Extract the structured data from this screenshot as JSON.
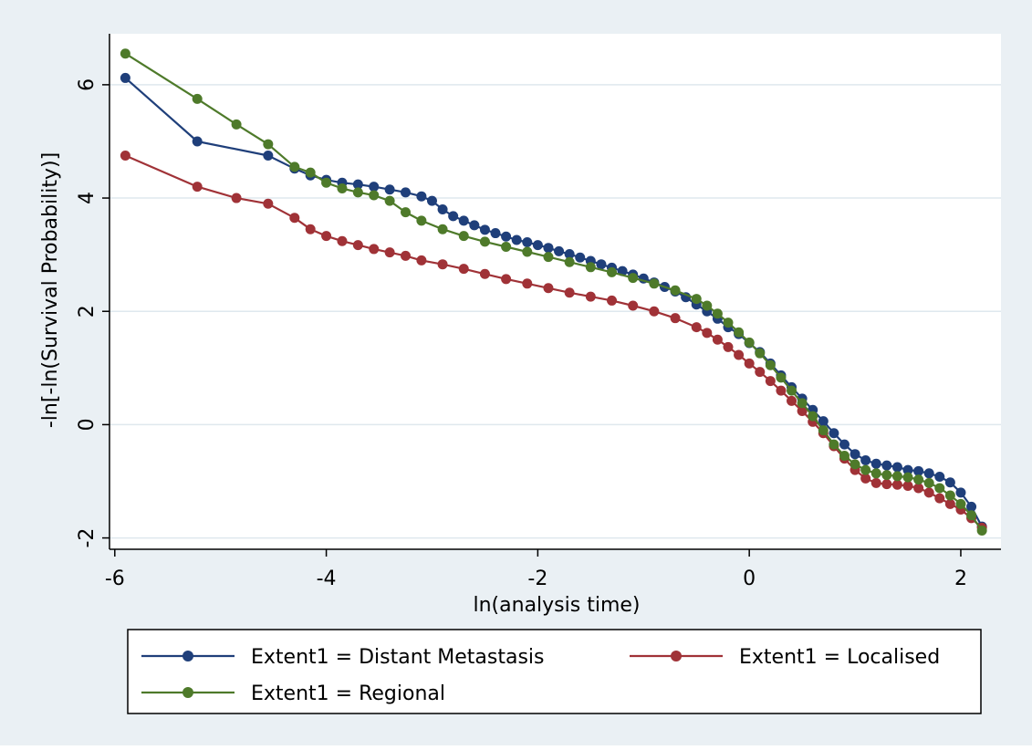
{
  "chart_data": {
    "type": "line",
    "title": "",
    "xlabel": "ln(analysis time)",
    "ylabel": "-ln[-ln(Survival Probability)]",
    "xlim": [
      -6.05,
      2.38
    ],
    "ylim": [
      -2.2,
      6.9
    ],
    "x_ticks": [
      -6,
      -4,
      -2,
      0,
      2
    ],
    "y_ticks": [
      -2,
      0,
      2,
      4,
      6
    ],
    "x_tick_labels": [
      "-6",
      "-4",
      "-2",
      "0",
      "2"
    ],
    "y_tick_labels": [
      "-2",
      "0",
      "2",
      "4",
      "6"
    ],
    "grid": "horizontal",
    "legend_position": "bottom",
    "series": [
      {
        "name": "Extent1 = Distant Metastasis",
        "color": "#1f3f7a",
        "x": [
          -5.9,
          -5.22,
          -4.55,
          -4.3,
          -4.15,
          -4.0,
          -3.85,
          -3.7,
          -3.55,
          -3.4,
          -3.25,
          -3.1,
          -3.0,
          -2.9,
          -2.8,
          -2.7,
          -2.6,
          -2.5,
          -2.4,
          -2.3,
          -2.2,
          -2.1,
          -2.0,
          -1.9,
          -1.8,
          -1.7,
          -1.6,
          -1.5,
          -1.4,
          -1.3,
          -1.2,
          -1.1,
          -1.0,
          -0.9,
          -0.8,
          -0.7,
          -0.6,
          -0.5,
          -0.4,
          -0.3,
          -0.2,
          -0.1,
          0.0,
          0.1,
          0.2,
          0.3,
          0.4,
          0.5,
          0.6,
          0.7,
          0.8,
          0.9,
          1.0,
          1.1,
          1.2,
          1.3,
          1.4,
          1.5,
          1.6,
          1.7,
          1.8,
          1.9,
          2.0,
          2.1,
          2.2
        ],
        "y": [
          6.12,
          5.0,
          4.75,
          4.52,
          4.4,
          4.32,
          4.27,
          4.24,
          4.2,
          4.15,
          4.1,
          4.03,
          3.95,
          3.8,
          3.68,
          3.6,
          3.52,
          3.44,
          3.38,
          3.32,
          3.26,
          3.22,
          3.17,
          3.12,
          3.06,
          3.01,
          2.95,
          2.89,
          2.83,
          2.77,
          2.71,
          2.65,
          2.58,
          2.51,
          2.43,
          2.35,
          2.25,
          2.12,
          2.0,
          1.87,
          1.72,
          1.6,
          1.44,
          1.28,
          1.08,
          0.87,
          0.66,
          0.46,
          0.26,
          0.06,
          -0.15,
          -0.35,
          -0.52,
          -0.63,
          -0.69,
          -0.72,
          -0.75,
          -0.8,
          -0.82,
          -0.86,
          -0.92,
          -1.02,
          -1.2,
          -1.45,
          -1.8
        ]
      },
      {
        "name": "Extent1 = Localised",
        "color": "#a03237",
        "x": [
          -5.9,
          -5.22,
          -4.85,
          -4.55,
          -4.3,
          -4.15,
          -4.0,
          -3.85,
          -3.7,
          -3.55,
          -3.4,
          -3.25,
          -3.1,
          -2.9,
          -2.7,
          -2.5,
          -2.3,
          -2.1,
          -1.9,
          -1.7,
          -1.5,
          -1.3,
          -1.1,
          -0.9,
          -0.7,
          -0.5,
          -0.4,
          -0.3,
          -0.2,
          -0.1,
          0.0,
          0.1,
          0.2,
          0.3,
          0.4,
          0.5,
          0.6,
          0.7,
          0.8,
          0.9,
          1.0,
          1.1,
          1.2,
          1.3,
          1.4,
          1.5,
          1.6,
          1.7,
          1.8,
          1.9,
          2.0,
          2.1,
          2.2
        ],
        "y": [
          4.75,
          4.2,
          4.0,
          3.9,
          3.65,
          3.45,
          3.33,
          3.24,
          3.17,
          3.1,
          3.04,
          2.98,
          2.9,
          2.83,
          2.75,
          2.66,
          2.57,
          2.49,
          2.41,
          2.33,
          2.26,
          2.19,
          2.1,
          2.0,
          1.88,
          1.72,
          1.62,
          1.5,
          1.37,
          1.23,
          1.08,
          0.93,
          0.77,
          0.6,
          0.42,
          0.24,
          0.05,
          -0.15,
          -0.38,
          -0.6,
          -0.8,
          -0.95,
          -1.03,
          -1.05,
          -1.06,
          -1.08,
          -1.12,
          -1.2,
          -1.3,
          -1.4,
          -1.5,
          -1.65,
          -1.82
        ]
      },
      {
        "name": "Extent1 = Regional",
        "color": "#4e7a2a",
        "x": [
          -5.9,
          -5.22,
          -4.85,
          -4.55,
          -4.3,
          -4.15,
          -4.0,
          -3.85,
          -3.7,
          -3.55,
          -3.4,
          -3.25,
          -3.1,
          -2.9,
          -2.7,
          -2.5,
          -2.3,
          -2.1,
          -1.9,
          -1.7,
          -1.5,
          -1.3,
          -1.1,
          -0.9,
          -0.7,
          -0.5,
          -0.4,
          -0.3,
          -0.2,
          -0.1,
          0.0,
          0.1,
          0.2,
          0.3,
          0.4,
          0.5,
          0.6,
          0.7,
          0.8,
          0.9,
          1.0,
          1.1,
          1.2,
          1.3,
          1.4,
          1.5,
          1.6,
          1.7,
          1.8,
          1.9,
          2.0,
          2.1,
          2.2
        ],
        "y": [
          6.55,
          5.75,
          5.3,
          4.95,
          4.55,
          4.45,
          4.27,
          4.17,
          4.1,
          4.05,
          3.95,
          3.75,
          3.6,
          3.45,
          3.33,
          3.23,
          3.14,
          3.05,
          2.96,
          2.87,
          2.78,
          2.69,
          2.59,
          2.49,
          2.37,
          2.22,
          2.1,
          1.96,
          1.8,
          1.63,
          1.45,
          1.26,
          1.05,
          0.83,
          0.6,
          0.38,
          0.15,
          -0.1,
          -0.35,
          -0.55,
          -0.7,
          -0.8,
          -0.86,
          -0.89,
          -0.91,
          -0.93,
          -0.97,
          -1.03,
          -1.12,
          -1.25,
          -1.4,
          -1.6,
          -1.87
        ]
      }
    ]
  }
}
